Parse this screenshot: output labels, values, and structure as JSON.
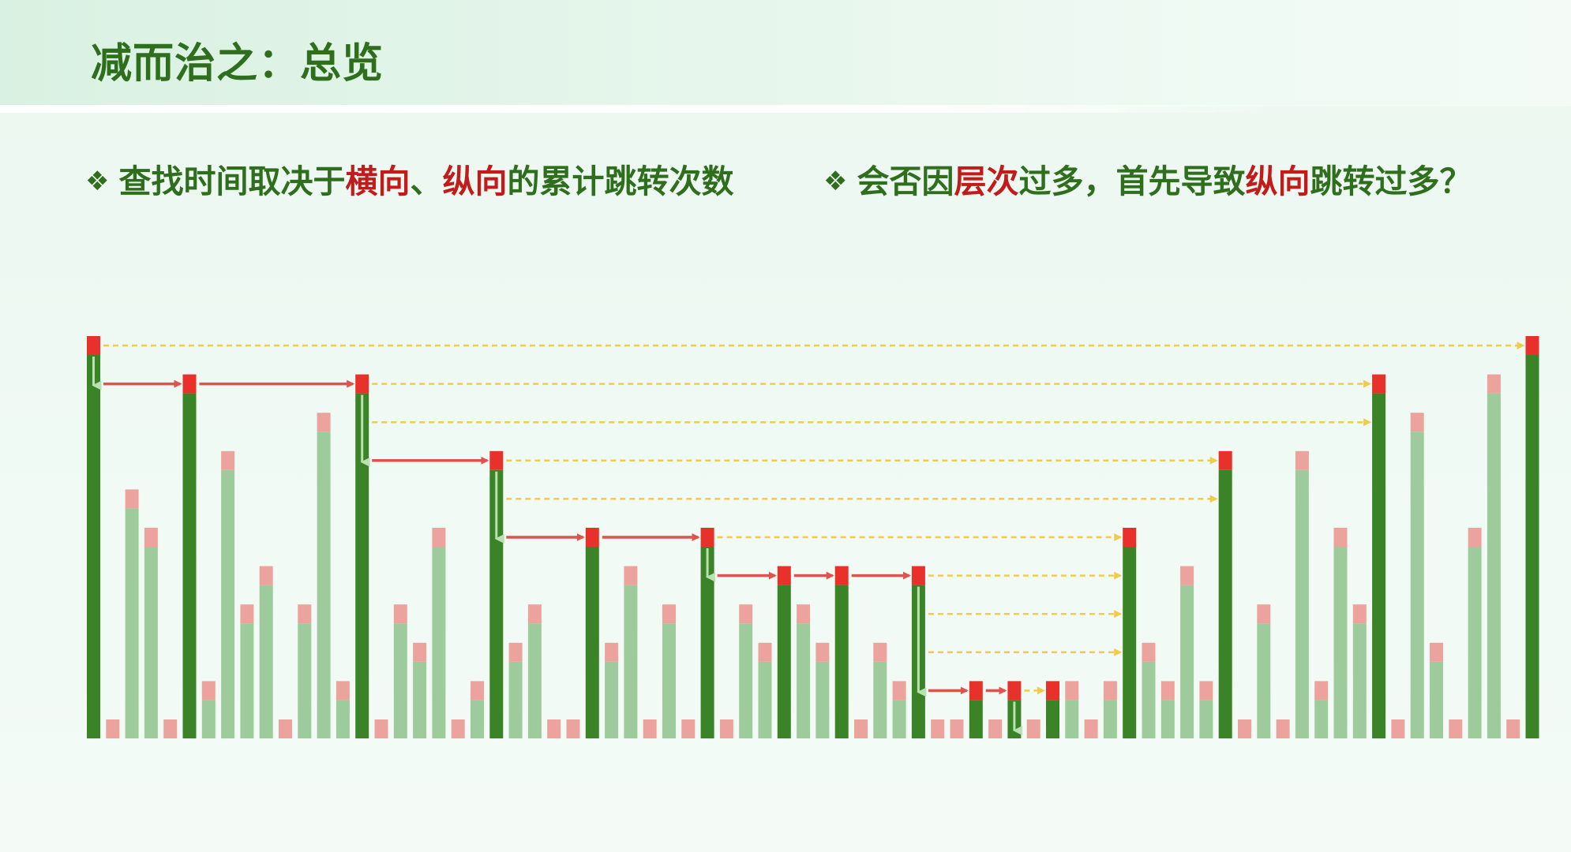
{
  "title": "减而治之：总览",
  "bullets": [
    {
      "mark": "❖",
      "parts": [
        {
          "text": "查找时间取决于",
          "highlight": false
        },
        {
          "text": "横向",
          "highlight": true
        },
        {
          "text": "、",
          "highlight": false
        },
        {
          "text": "纵向",
          "highlight": true
        },
        {
          "text": "的累计跳转次数",
          "highlight": false
        }
      ]
    },
    {
      "mark": "❖",
      "parts": [
        {
          "text": "会否因",
          "highlight": false
        },
        {
          "text": "层次",
          "highlight": true
        },
        {
          "text": "过多，首先导致",
          "highlight": false
        },
        {
          "text": "纵向",
          "highlight": true
        },
        {
          "text": "跳转过多？",
          "highlight": false
        }
      ]
    }
  ],
  "colors": {
    "title": "#2f6e1d",
    "highlight": "#c21b1b",
    "tower_dark": "#3a8326",
    "tower_light": "#9ecb9b",
    "cap_dark": "#e8312a",
    "cap_light": "#eca39e",
    "arrow_solid": "#e0524d",
    "arrow_dashed": "#f3cb4c",
    "arrow_down": "#b9e2b0"
  },
  "diagram": {
    "description_free": true,
    "towers": [
      {
        "h": 10,
        "emph": true
      },
      {
        "h": 0,
        "emph": false
      },
      {
        "h": 6,
        "emph": false
      },
      {
        "h": 5,
        "emph": false
      },
      {
        "h": 0,
        "emph": false
      },
      {
        "h": 9,
        "emph": true
      },
      {
        "h": 1,
        "emph": false
      },
      {
        "h": 7,
        "emph": false
      },
      {
        "h": 3,
        "emph": false
      },
      {
        "h": 4,
        "emph": false
      },
      {
        "h": 0,
        "emph": false
      },
      {
        "h": 3,
        "emph": false
      },
      {
        "h": 8,
        "emph": false
      },
      {
        "h": 1,
        "emph": false
      },
      {
        "h": 9,
        "emph": true
      },
      {
        "h": 0,
        "emph": false
      },
      {
        "h": 3,
        "emph": false
      },
      {
        "h": 2,
        "emph": false
      },
      {
        "h": 5,
        "emph": false
      },
      {
        "h": 0,
        "emph": false
      },
      {
        "h": 1,
        "emph": false
      },
      {
        "h": 7,
        "emph": true
      },
      {
        "h": 2,
        "emph": false
      },
      {
        "h": 3,
        "emph": false
      },
      {
        "h": 0,
        "emph": false
      },
      {
        "h": 0,
        "emph": false
      },
      {
        "h": 5,
        "emph": true
      },
      {
        "h": 2,
        "emph": false
      },
      {
        "h": 4,
        "emph": false
      },
      {
        "h": 0,
        "emph": false
      },
      {
        "h": 3,
        "emph": false
      },
      {
        "h": 0,
        "emph": false
      },
      {
        "h": 5,
        "emph": true
      },
      {
        "h": 0,
        "emph": false
      },
      {
        "h": 3,
        "emph": false
      },
      {
        "h": 2,
        "emph": false
      },
      {
        "h": 4,
        "emph": true
      },
      {
        "h": 3,
        "emph": false
      },
      {
        "h": 2,
        "emph": false
      },
      {
        "h": 4,
        "emph": true
      },
      {
        "h": 0,
        "emph": false
      },
      {
        "h": 2,
        "emph": false
      },
      {
        "h": 1,
        "emph": false
      },
      {
        "h": 4,
        "emph": true
      },
      {
        "h": 0,
        "emph": false
      },
      {
        "h": 0,
        "emph": false
      },
      {
        "h": 1,
        "emph": true
      },
      {
        "h": 0,
        "emph": false
      },
      {
        "h": 1,
        "emph": true
      },
      {
        "h": 0,
        "emph": false
      },
      {
        "h": 1,
        "emph": true
      },
      {
        "h": 1,
        "emph": false
      },
      {
        "h": 0,
        "emph": false
      },
      {
        "h": 1,
        "emph": false
      },
      {
        "h": 5,
        "emph": true
      },
      {
        "h": 2,
        "emph": false
      },
      {
        "h": 1,
        "emph": false
      },
      {
        "h": 4,
        "emph": false
      },
      {
        "h": 1,
        "emph": false
      },
      {
        "h": 7,
        "emph": true
      },
      {
        "h": 0,
        "emph": false
      },
      {
        "h": 3,
        "emph": false
      },
      {
        "h": 0,
        "emph": false
      },
      {
        "h": 7,
        "emph": false
      },
      {
        "h": 1,
        "emph": false
      },
      {
        "h": 5,
        "emph": false
      },
      {
        "h": 3,
        "emph": false
      },
      {
        "h": 9,
        "emph": true
      },
      {
        "h": 0,
        "emph": false
      },
      {
        "h": 8,
        "emph": false
      },
      {
        "h": 2,
        "emph": false
      },
      {
        "h": 0,
        "emph": false
      },
      {
        "h": 5,
        "emph": false
      },
      {
        "h": 9,
        "emph": false
      },
      {
        "h": 0,
        "emph": false
      },
      {
        "h": 10,
        "emph": true
      }
    ],
    "solid_arrows": [
      {
        "from": 0,
        "to": 5,
        "level": 9
      },
      {
        "from": 5,
        "to": 14,
        "level": 9
      },
      {
        "from": 14,
        "to": 21,
        "level": 7
      },
      {
        "from": 21,
        "to": 26,
        "level": 5
      },
      {
        "from": 26,
        "to": 32,
        "level": 5
      },
      {
        "from": 32,
        "to": 36,
        "level": 4
      },
      {
        "from": 36,
        "to": 39,
        "level": 4
      },
      {
        "from": 39,
        "to": 43,
        "level": 4
      },
      {
        "from": 43,
        "to": 46,
        "level": 1
      },
      {
        "from": 46,
        "to": 48,
        "level": 1
      }
    ],
    "dashed_arrows": [
      {
        "from": 0,
        "to": 75,
        "level": 10
      },
      {
        "from": 14,
        "to": 67,
        "level": 9
      },
      {
        "from": 14,
        "to": 67,
        "level": 8
      },
      {
        "from": 21,
        "to": 59,
        "level": 7
      },
      {
        "from": 21,
        "to": 59,
        "level": 6
      },
      {
        "from": 32,
        "to": 54,
        "level": 5
      },
      {
        "from": 43,
        "to": 54,
        "level": 4
      },
      {
        "from": 43,
        "to": 54,
        "level": 3
      },
      {
        "from": 43,
        "to": 54,
        "level": 2
      },
      {
        "from": 48,
        "to": 50,
        "level": 1
      }
    ],
    "down_arrows": [
      {
        "col": 0,
        "from_level": 10,
        "to_level": 9
      },
      {
        "col": 14,
        "from_level": 9,
        "to_level": 7
      },
      {
        "col": 21,
        "from_level": 7,
        "to_level": 5
      },
      {
        "col": 32,
        "from_level": 5,
        "to_level": 4
      },
      {
        "col": 43,
        "from_level": 4,
        "to_level": 1
      },
      {
        "col": 48,
        "from_level": 1,
        "to_level": 0
      }
    ]
  }
}
